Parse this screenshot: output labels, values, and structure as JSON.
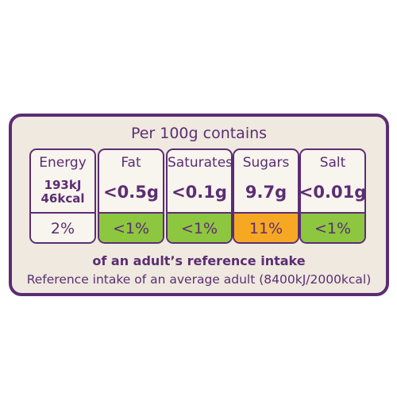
{
  "header": {
    "title": "Per 100g contains"
  },
  "nutrients": [
    {
      "name": "Energy",
      "values": [
        "193kJ",
        "46kcal"
      ],
      "percent": "2%",
      "color": "#f8f4ee"
    },
    {
      "name": "Fat",
      "values": [
        "<0.5g"
      ],
      "percent": "<1%",
      "color": "#8dc63f"
    },
    {
      "name": "Saturates",
      "values": [
        "<0.1g"
      ],
      "percent": "<1%",
      "color": "#8dc63f"
    },
    {
      "name": "Sugars",
      "values": [
        "9.7g"
      ],
      "percent": "11%",
      "color": "#f7a823"
    },
    {
      "name": "Salt",
      "values": [
        "<0.01g"
      ],
      "percent": "<1%",
      "color": "#8dc63f"
    }
  ],
  "footer": {
    "intake": "of an adult’s reference intake",
    "reference": "Reference intake of an average adult (8400kJ/2000kcal)"
  }
}
